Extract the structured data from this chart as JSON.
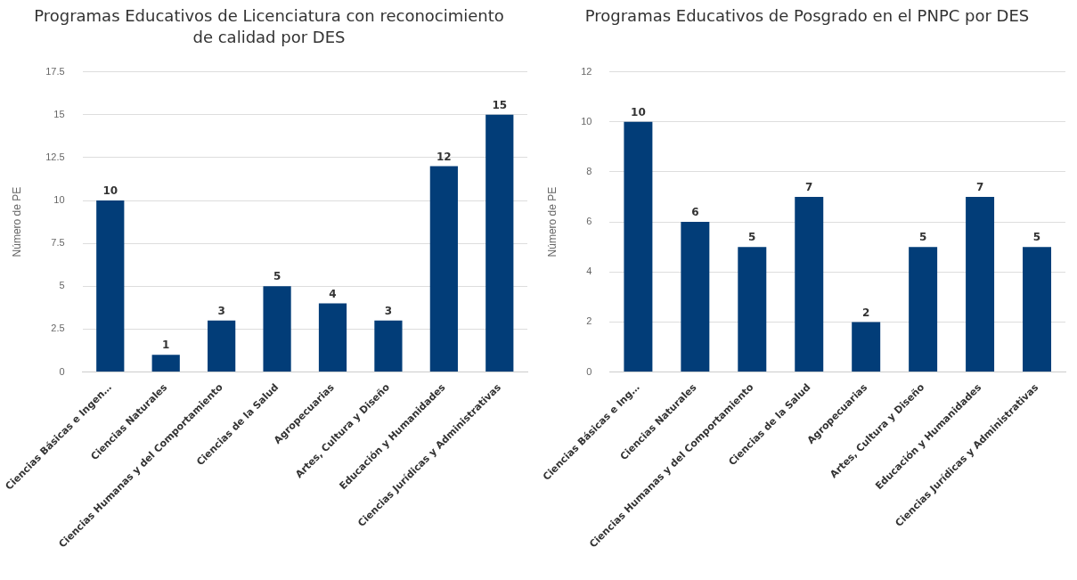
{
  "chart_data": [
    {
      "type": "bar",
      "title": "Programas Educativos de Licenciatura con reconocimiento de calidad por DES",
      "ylabel": "Número de PE",
      "categories": [
        "Ciencias Básicas e Ingen…",
        "Ciencias Naturales",
        "Ciencias Humanas y del Comportamiento",
        "Ciencias de la Salud",
        "Agropecuarias",
        "Artes, Cultura y Diseño",
        "Educación y Humanidades",
        "Ciencias Jurídicas y Administrativas"
      ],
      "values": [
        10,
        1,
        3,
        5,
        4,
        3,
        12,
        15
      ],
      "color": "#023d78",
      "ylim": [
        0,
        17.5
      ],
      "yticks": [
        0,
        2.5,
        5,
        7.5,
        10,
        12.5,
        15,
        17.5
      ],
      "grid": "y",
      "data_labels": true
    },
    {
      "type": "bar",
      "title": "Programas Educativos de Posgrado en el PNPC por DES",
      "ylabel": "Número de PE",
      "categories": [
        "Ciencias Básicas e Ing…",
        "Ciencias Naturales",
        "Ciencias Humanas y del Comportamiento",
        "Ciencias de la Salud",
        "Agropecuarias",
        "Artes, Cultura y Diseño",
        "Educación y Humanidades",
        "Ciencias Jurídicas y Administrativas"
      ],
      "values": [
        10,
        6,
        5,
        7,
        2,
        5,
        7,
        5
      ],
      "color": "#023d78",
      "ylim": [
        0,
        12
      ],
      "yticks": [
        0,
        2,
        4,
        6,
        8,
        10,
        12
      ],
      "grid": "y",
      "data_labels": true
    }
  ]
}
